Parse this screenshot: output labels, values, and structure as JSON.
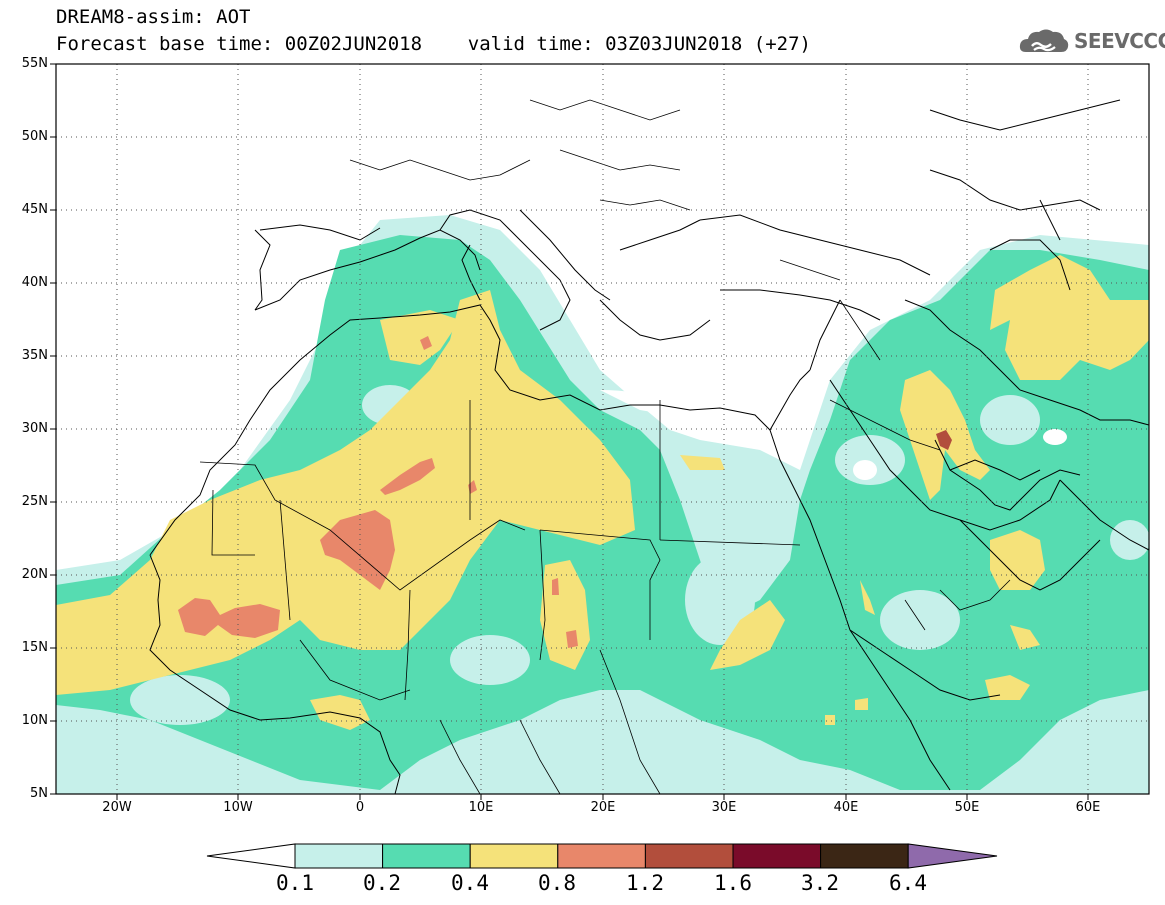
{
  "header": {
    "line1": "DREAM8-assim: AOT",
    "line2": "Forecast base time: 00Z02JUN2018    valid time: 03Z03JUN2018 (+27)"
  },
  "logo": {
    "text": "SEEVCCC",
    "icon": "cloud-icon"
  },
  "map": {
    "lat_labels": [
      "55N",
      "50N",
      "45N",
      "40N",
      "35N",
      "30N",
      "25N",
      "20N",
      "15N",
      "10N",
      "5N"
    ],
    "lon_labels": [
      "20W",
      "10W",
      "0",
      "10E",
      "20E",
      "30E",
      "40E",
      "50E",
      "60E"
    ],
    "lon_range": [
      -25,
      65
    ],
    "lat_range": [
      5,
      55
    ],
    "gridlines": "dotted"
  },
  "colorbar": {
    "labels": [
      "0.1",
      "0.2",
      "0.4",
      "0.8",
      "1.2",
      "1.6",
      "3.2",
      "6.4"
    ],
    "colors": [
      "#ffffff",
      "#c6f0ea",
      "#56dcb1",
      "#f5e27a",
      "#e8876a",
      "#b24e3c",
      "#7a0b2a",
      "#3b2615",
      "#8f6aab"
    ]
  }
}
